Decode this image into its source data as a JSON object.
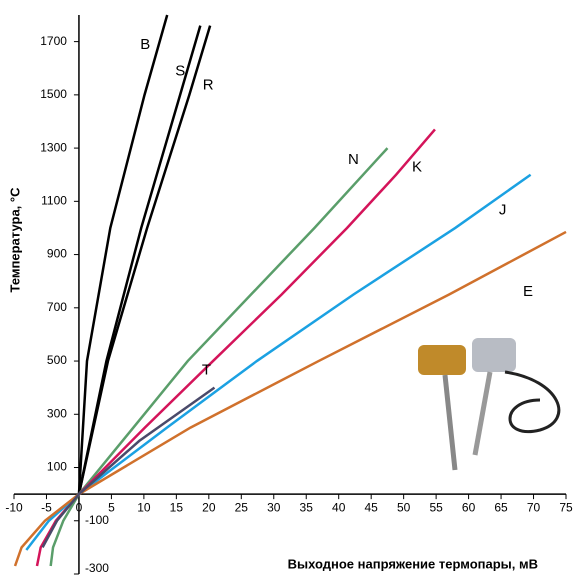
{
  "chart_data": {
    "type": "line",
    "x_label": "Выходное напряжение термопары, мВ",
    "y_label": "Температура, °C",
    "xlim": [
      -10,
      75
    ],
    "ylim": [
      -300,
      1800
    ],
    "xticks": [
      -10,
      -5,
      0,
      5,
      10,
      15,
      20,
      25,
      30,
      35,
      40,
      45,
      50,
      55,
      60,
      65,
      70,
      75
    ],
    "yticks": [
      -300,
      -100,
      100,
      300,
      500,
      700,
      900,
      1100,
      1300,
      1500,
      1700
    ],
    "series": [
      {
        "name": "B",
        "color": "#000000",
        "x": [
          0,
          1.24,
          4.83,
          10.1,
          13.59
        ],
        "values": [
          0,
          500,
          1000,
          1500,
          1800
        ]
      },
      {
        "name": "S",
        "color": "#000000",
        "x": [
          0,
          4.23,
          9.59,
          15.58,
          18.69
        ],
        "values": [
          0,
          500,
          1000,
          1500,
          1760
        ]
      },
      {
        "name": "R",
        "color": "#000000",
        "x": [
          0,
          4.47,
          10.5,
          17.0,
          20.2
        ],
        "values": [
          0,
          500,
          1000,
          1500,
          1760
        ]
      },
      {
        "name": "N",
        "color": "#5a9e6a",
        "x": [
          -4.35,
          -3.99,
          -2.41,
          0,
          16.75,
          36.26,
          47.51
        ],
        "values": [
          -270,
          -200,
          -100,
          0,
          500,
          1000,
          1300
        ]
      },
      {
        "name": "K",
        "color": "#d4145a",
        "x": [
          -6.46,
          -5.89,
          -3.55,
          0,
          10.15,
          20.64,
          31.21,
          41.28,
          48.84,
          54.82
        ],
        "values": [
          -270,
          -200,
          -100,
          0,
          250,
          500,
          750,
          1000,
          1200,
          1370
        ]
      },
      {
        "name": "J",
        "color": "#1ba1e2",
        "x": [
          -8.1,
          -4.63,
          0,
          13.55,
          27.39,
          42.28,
          57.95,
          69.55
        ],
        "values": [
          -210,
          -100,
          0,
          250,
          500,
          750,
          1000,
          1200
        ]
      },
      {
        "name": "E",
        "color": "#d0712c",
        "x": [
          -9.84,
          -8.83,
          -5.24,
          0,
          17.18,
          36.9,
          57.0,
          75
        ],
        "values": [
          -270,
          -200,
          -100,
          0,
          250,
          500,
          750,
          985
        ]
      },
      {
        "name": "T",
        "color": "#4a4a6a",
        "x": [
          -5.6,
          -3.38,
          0,
          9.29,
          20.87
        ],
        "values": [
          -200,
          -100,
          0,
          200,
          400
        ]
      }
    ]
  }
}
